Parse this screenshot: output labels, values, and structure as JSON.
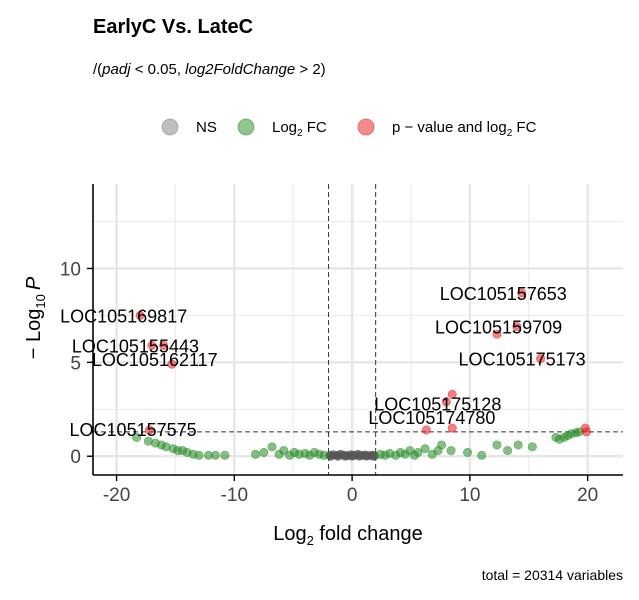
{
  "chart_data": {
    "type": "scatter",
    "title": "EarlyC Vs. LateC",
    "subtitle_prefix": "/(",
    "subtitle_padj": "padj",
    "subtitle_lt": " < 0.05, ",
    "subtitle_fc": "log2FoldChange",
    "subtitle_gt": " > 2)",
    "xlabel_main": "Log",
    "xlabel_sub": "2",
    "xlabel_rest": " fold change",
    "ylabel_prefix": "− Log",
    "ylabel_sub": "10",
    "ylabel_var": "P",
    "caption": "total = 20314 variables",
    "xlim": [
      -22,
      23
    ],
    "ylim": [
      -1,
      14.5
    ],
    "x_ticks": [
      -20,
      -10,
      0,
      10,
      20
    ],
    "x_tick_labels": [
      "-20",
      "-10",
      "0",
      "10",
      "20"
    ],
    "y_ticks": [
      0,
      5,
      10
    ],
    "y_tick_labels": [
      "0",
      "5",
      "10"
    ],
    "fc_cutoff": 2,
    "p_cutoff_line": 1.3,
    "grid": true,
    "legend_position": "top",
    "legend": [
      {
        "key": "ns",
        "label": "NS",
        "sub": "",
        "rest": "",
        "color": "#808080"
      },
      {
        "key": "fc",
        "label": "Log",
        "sub": "2",
        "rest": " FC",
        "color": "#228B22"
      },
      {
        "key": "both",
        "label": "p − value and log",
        "sub": "2",
        "rest": " FC",
        "color": "#E8161B"
      }
    ],
    "colors": {
      "ns": "#555555",
      "fc": "#228B22",
      "both": "#E8161B"
    },
    "series": [
      {
        "key": "both",
        "points": [
          [
            -18.0,
            7.5
          ],
          [
            -17.0,
            5.9
          ],
          [
            -16.0,
            5.9
          ],
          [
            -15.3,
            4.9
          ],
          [
            -17.2,
            1.4
          ],
          [
            14.4,
            8.7
          ],
          [
            14.0,
            6.9
          ],
          [
            12.3,
            6.5
          ],
          [
            16.0,
            5.2
          ],
          [
            8.5,
            3.3
          ],
          [
            8.0,
            2.9
          ],
          [
            6.3,
            1.4
          ],
          [
            8.5,
            1.5
          ],
          [
            19.8,
            1.5
          ],
          [
            19.9,
            1.3
          ]
        ]
      },
      {
        "key": "fc",
        "points": [
          [
            -18.3,
            1.0
          ],
          [
            -17.3,
            0.8
          ],
          [
            -16.7,
            0.7
          ],
          [
            -16.2,
            0.6
          ],
          [
            -15.8,
            0.5
          ],
          [
            -15.2,
            0.4
          ],
          [
            -14.8,
            0.3
          ],
          [
            -14.4,
            0.3
          ],
          [
            -14.0,
            0.2
          ],
          [
            -13.5,
            0.1
          ],
          [
            -13.0,
            0.05
          ],
          [
            -12.2,
            0.05
          ],
          [
            -11.6,
            0.05
          ],
          [
            -10.8,
            0.05
          ],
          [
            -8.2,
            0.1
          ],
          [
            -7.5,
            0.2
          ],
          [
            -6.8,
            0.5
          ],
          [
            -6.2,
            0.1
          ],
          [
            -5.8,
            0.3
          ],
          [
            -5.3,
            0.05
          ],
          [
            -4.9,
            0.2
          ],
          [
            -4.5,
            0.1
          ],
          [
            -4.0,
            0.15
          ],
          [
            -3.6,
            0.05
          ],
          [
            -3.2,
            0.2
          ],
          [
            -2.8,
            0.1
          ],
          [
            -2.4,
            0.05
          ],
          [
            2.4,
            0.1
          ],
          [
            2.8,
            0.05
          ],
          [
            3.2,
            0.15
          ],
          [
            3.7,
            0.05
          ],
          [
            4.1,
            0.2
          ],
          [
            4.5,
            0.1
          ],
          [
            4.9,
            0.3
          ],
          [
            5.3,
            0.05
          ],
          [
            5.6,
            0.2
          ],
          [
            6.2,
            0.4
          ],
          [
            6.8,
            0.1
          ],
          [
            7.3,
            0.3
          ],
          [
            7.6,
            0.6
          ],
          [
            8.4,
            0.3
          ],
          [
            9.8,
            0.2
          ],
          [
            11.0,
            0.05
          ],
          [
            12.3,
            0.6
          ],
          [
            13.2,
            0.3
          ],
          [
            14.1,
            0.6
          ],
          [
            15.3,
            0.5
          ],
          [
            17.3,
            1.0
          ],
          [
            17.6,
            0.9
          ],
          [
            18.0,
            1.0
          ],
          [
            18.3,
            1.1
          ],
          [
            18.6,
            1.2
          ],
          [
            19.0,
            1.25
          ],
          [
            19.3,
            1.3
          ]
        ]
      },
      {
        "key": "ns",
        "points": [
          [
            -1.9,
            0.05
          ],
          [
            -1.6,
            0.08
          ],
          [
            -1.3,
            0.04
          ],
          [
            -1.0,
            0.1
          ],
          [
            -0.7,
            0.06
          ],
          [
            -0.4,
            0.03
          ],
          [
            -0.1,
            0.08
          ],
          [
            0.2,
            0.05
          ],
          [
            0.5,
            0.1
          ],
          [
            0.8,
            0.04
          ],
          [
            1.1,
            0.07
          ],
          [
            1.4,
            0.03
          ],
          [
            1.7,
            0.06
          ],
          [
            1.9,
            0.02
          ],
          [
            -1.8,
            0.0
          ],
          [
            -1.2,
            0.0
          ],
          [
            -0.6,
            0.0
          ],
          [
            0.0,
            0.0
          ],
          [
            0.6,
            0.0
          ],
          [
            1.2,
            0.0
          ],
          [
            1.8,
            0.0
          ]
        ]
      }
    ],
    "labels": [
      {
        "text": "LOC105169817",
        "x": -18.0,
        "y": 7.5,
        "dx": -80,
        "dy": 7
      },
      {
        "text": "LOC105155443",
        "x": -17.0,
        "y": 5.9,
        "dx": -80,
        "dy": 7
      },
      {
        "text": "LOC105162117",
        "x": -15.3,
        "y": 4.9,
        "dx": -80,
        "dy": 2
      },
      {
        "text": "LOC105157575",
        "x": -17.2,
        "y": 1.4,
        "dx": -80,
        "dy": 6
      },
      {
        "text": "LOC105157653",
        "x": 14.4,
        "y": 8.7,
        "dx": -82,
        "dy": 7
      },
      {
        "text": "LOC105159709",
        "x": 14.0,
        "y": 6.9,
        "dx": -82,
        "dy": 7
      },
      {
        "text": "LOC105175173",
        "x": 16.0,
        "y": 5.2,
        "dx": -82,
        "dy": 7
      },
      {
        "text": "LOC105175128",
        "x": 8.5,
        "y": 3.3,
        "dx": -78,
        "dy": 16
      },
      {
        "text": "LOC105174780",
        "x": 8.0,
        "y": 2.9,
        "dx": -78,
        "dy": 22
      }
    ]
  }
}
